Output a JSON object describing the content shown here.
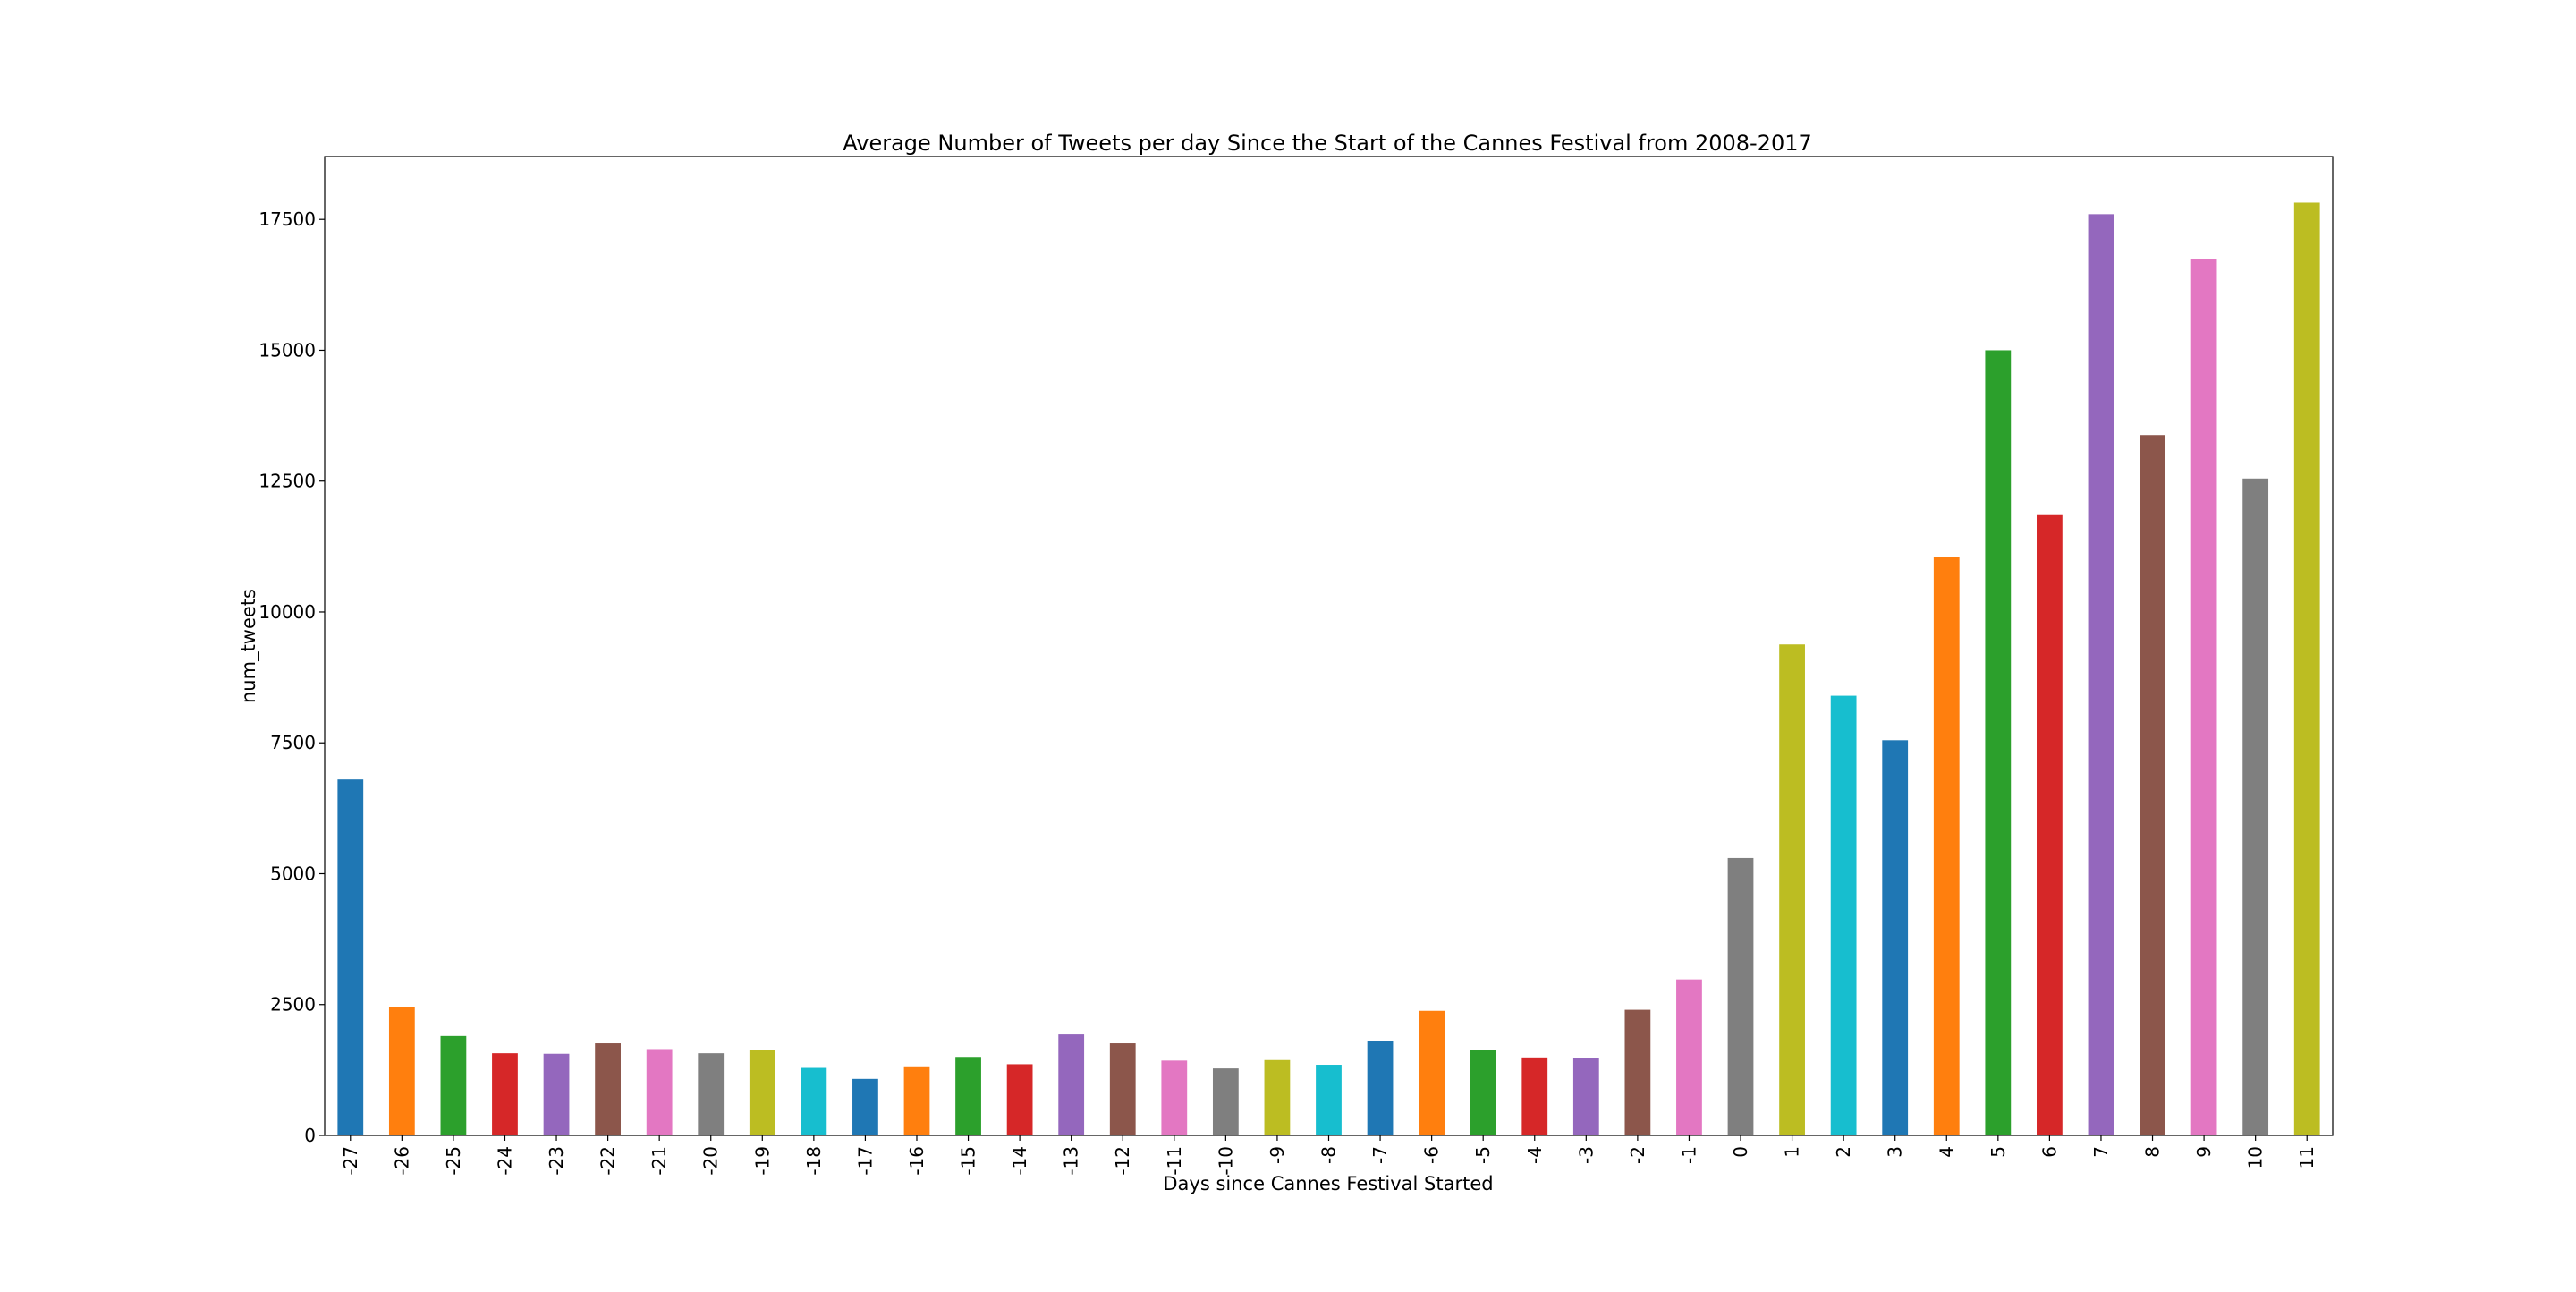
{
  "chart_data": {
    "type": "bar",
    "title": "Average Number of Tweets per day Since the Start of the Cannes Festival from 2008-2017",
    "xlabel": "Days since Cannes Festival Started",
    "ylabel": "num_tweets",
    "categories": [
      "-27",
      "-26",
      "-25",
      "-24",
      "-23",
      "-22",
      "-21",
      "-20",
      "-19",
      "-18",
      "-17",
      "-16",
      "-15",
      "-14",
      "-13",
      "-12",
      "-11",
      "-10",
      "-9",
      "-8",
      "-7",
      "-6",
      "-5",
      "-4",
      "-3",
      "-2",
      "-1",
      "0",
      "1",
      "2",
      "3",
      "4",
      "5",
      "6",
      "7",
      "8",
      "9",
      "10",
      "11"
    ],
    "values": [
      6800,
      2450,
      1900,
      1570,
      1560,
      1760,
      1650,
      1570,
      1630,
      1290,
      1080,
      1320,
      1500,
      1360,
      1930,
      1760,
      1430,
      1280,
      1440,
      1350,
      1800,
      2380,
      1640,
      1490,
      1480,
      2400,
      2980,
      5300,
      9380,
      8400,
      7550,
      11050,
      15000,
      11850,
      17600,
      13380,
      16750,
      12550,
      17820
    ],
    "ylim": [
      0,
      18700
    ],
    "yticks": [
      0,
      2500,
      5000,
      7500,
      10000,
      12500,
      15000,
      17500
    ],
    "grid": false,
    "legend": "none",
    "colors": [
      "#1f77b4",
      "#ff7f0e",
      "#2ca02c",
      "#d62728",
      "#9467bd",
      "#8c564b",
      "#e377c2",
      "#7f7f7f",
      "#bcbd22",
      "#17becf"
    ]
  }
}
